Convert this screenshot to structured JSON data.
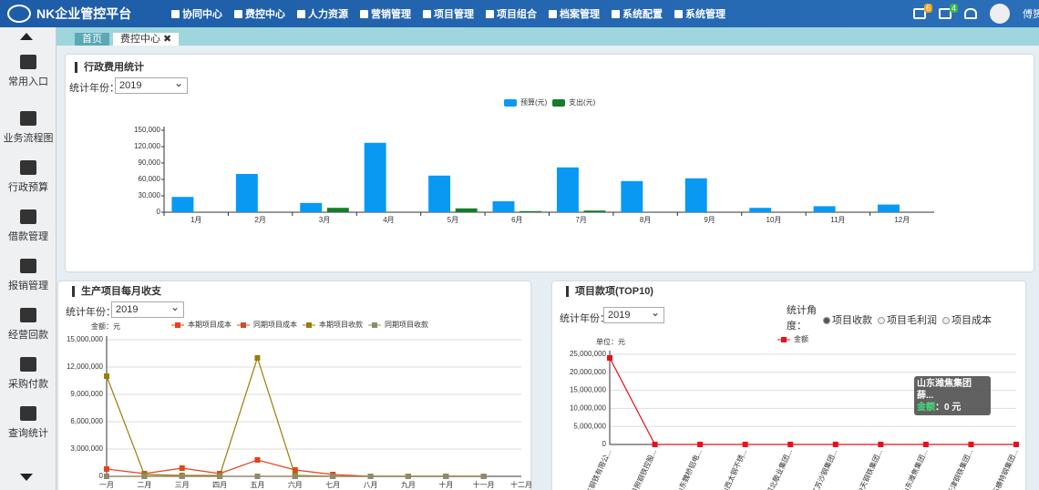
{
  "header": {
    "brand": "NK企业管控平台",
    "nav": [
      "协同中心",
      "费控中心",
      "人力资源",
      "营销管理",
      "项目管理",
      "项目组合",
      "档案管理",
      "系统配置",
      "系统管理"
    ],
    "badges": [
      "6",
      "4"
    ],
    "user": "傅赟"
  },
  "sidebar": [
    "常用入口",
    "业务流程图",
    "行政预算",
    "借款管理",
    "报销管理",
    "经营回款",
    "采购付款",
    "查询统计"
  ],
  "tabs": [
    "首页",
    "费控中心"
  ],
  "panels": [
    {
      "title": "行政费用统计",
      "filter": "统计年份：",
      "select": "2019"
    },
    {
      "title": "生产项目每月收支",
      "filter": "统计年份：",
      "select": "2019"
    },
    {
      "title": "项目款项(TOP10)",
      "filter": "统计年份：",
      "select": "2019",
      "angle": "统计角度：",
      "options": [
        "项目收款",
        "项目毛利润",
        "项目成本"
      ]
    }
  ],
  "chart_data": [
    {
      "type": "bar",
      "categories": [
        "1月",
        "2月",
        "3月",
        "4月",
        "5月",
        "6月",
        "7月",
        "8月",
        "9月",
        "10月",
        "11月",
        "12月"
      ],
      "series": [
        {
          "name": "预算(元)",
          "color": "#0a99f2",
          "values": [
            28000,
            70000,
            17000,
            127000,
            67000,
            20000,
            82000,
            57000,
            62000,
            8000,
            11000,
            14000
          ]
        },
        {
          "name": "支出(元)",
          "color": "#167c2c",
          "values": [
            0,
            0,
            8000,
            0,
            7000,
            2000,
            3000,
            0,
            0,
            0,
            0,
            0
          ]
        }
      ],
      "ylim": [
        0,
        150000
      ],
      "yticks": [
        0,
        {
          "value": 30000,
          "label": "30,000"
        },
        {
          "value": 60000,
          "label": "60,000"
        },
        {
          "value": 90000,
          "label": "90,000"
        },
        {
          "value": 120000,
          "label": "120,000"
        },
        {
          "value": 150000,
          "label": "150,000"
        }
      ],
      "grid": false,
      "legend": "top"
    },
    {
      "type": "line",
      "ylabel": "金额：元",
      "categories": [
        "一月",
        "二月",
        "三月",
        "四月",
        "五月",
        "六月",
        "七月",
        "八月",
        "九月",
        "十月",
        "十一月",
        "十二月"
      ],
      "series": [
        {
          "name": "本期项目成本",
          "color": "#e8401c",
          "values": [
            800000,
            300000,
            900000,
            300000,
            1800000,
            700000,
            200000,
            0,
            0,
            0,
            0,
            null
          ]
        },
        {
          "name": "同期项目成本",
          "color": "#c8502a",
          "values": [
            0,
            0,
            0,
            0,
            0,
            0,
            0,
            0,
            0,
            0,
            0,
            null
          ]
        },
        {
          "name": "本期项目收款",
          "color": "#9a7d0a",
          "values": [
            11000000,
            200000,
            100000,
            100000,
            13000000,
            100000,
            0,
            0,
            0,
            0,
            0,
            null
          ]
        },
        {
          "name": "同期项目收款",
          "color": "#8c8c6c",
          "values": [
            0,
            0,
            0,
            0,
            0,
            0,
            0,
            0,
            0,
            0,
            0,
            null
          ]
        }
      ],
      "ylim": [
        0,
        15000000
      ],
      "yticks": [
        0,
        {
          "value": 3000000,
          "label": "3,000,000"
        },
        {
          "value": 6000000,
          "label": "6,000,000"
        },
        {
          "value": 9000000,
          "label": "9,000,000"
        },
        {
          "value": 12000000,
          "label": "12,000,000"
        },
        {
          "value": 15000000,
          "label": "15,000,000"
        }
      ],
      "grid": true,
      "legend": "top"
    },
    {
      "type": "line",
      "ylabel": "单位：元",
      "categories": [
        "山东钢铁有限公...",
        "日照钢铁控股...",
        "山东魏桥铝电...",
        "山西太钢不锈...",
        "河北敬业集团...",
        "江苏沙钢集团...",
        "中天钢铁集团...",
        "山东潍焦集团...",
        "天津钢铁集团...",
        "石横特钢集团..."
      ],
      "series": [
        {
          "name": "金额",
          "color": "#e8101c",
          "values": [
            24000000,
            0,
            0,
            0,
            0,
            0,
            0,
            0,
            0,
            0
          ]
        }
      ],
      "ylim": [
        0,
        25000000
      ],
      "yticks": [
        0,
        {
          "value": 5000000,
          "label": "5,000,000"
        },
        {
          "value": 10000000,
          "label": "10,000,000"
        },
        {
          "value": 15000000,
          "label": "15,000,000"
        },
        {
          "value": 20000000,
          "label": "20,000,000"
        },
        {
          "value": 25000000,
          "label": "25,000,000"
        }
      ],
      "grid": true,
      "legend": "top",
      "tooltip": {
        "title": "山东潍焦集团薛...",
        "label": "金额",
        "value": "：0 元"
      }
    }
  ]
}
